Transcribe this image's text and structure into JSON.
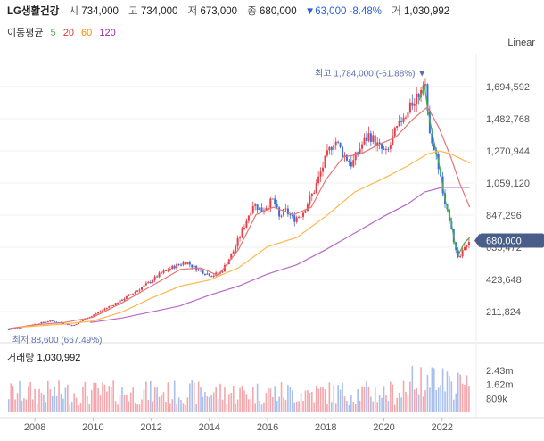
{
  "header": {
    "name": "LG생활건강",
    "open_label": "시",
    "open": "734,000",
    "high_label": "고",
    "high": "734,000",
    "low_label": "저",
    "low": "673,000",
    "close_label": "종",
    "close": "680,000",
    "change": "▼63,000",
    "change_pct": "-8.48%",
    "volume_label": "거",
    "volume": "1,030,992"
  },
  "ma_legend": {
    "title": "이동평균",
    "items": [
      {
        "label": "5",
        "color": "#4caf50"
      },
      {
        "label": "20",
        "color": "#e53935"
      },
      {
        "label": "60",
        "color": "#fb8c00"
      },
      {
        "label": "120",
        "color": "#9c27b0"
      }
    ]
  },
  "scale_button": "Linear",
  "volume_panel": {
    "label": "거래량",
    "value": "1,030,992"
  },
  "colors": {
    "up": "#e5404a",
    "down": "#3a6fd8",
    "last_price_bg": "#4a5e8a",
    "annotation": "#5b6fae"
  },
  "chart_data": {
    "type": "candlestick",
    "price_axis": {
      "ticks": [
        211824,
        423648,
        635472,
        847296,
        1059120,
        1270944,
        1482768,
        1694592
      ],
      "tick_labels": [
        "211,824",
        "423,648",
        "635,472",
        "847,296",
        "1,059,120",
        "1,270,944",
        "1,482,768",
        "1,694,592"
      ]
    },
    "time_axis": {
      "ticks": [
        2008,
        2010,
        2012,
        2014,
        2016,
        2018,
        2020,
        2022
      ],
      "range": [
        2007.1,
        2022.95
      ]
    },
    "last_price": {
      "value": 680000,
      "label": "680,000"
    },
    "annotations": {
      "high": {
        "label": "최고 1,784,000 (-61.88%)",
        "value": 1784000,
        "time": 2021.4
      },
      "low": {
        "label": "최저 88,600 (667.49%)",
        "value": 88600,
        "time": 2007.1
      }
    },
    "price_path": [
      [
        2007.1,
        95000
      ],
      [
        2007.6,
        115000
      ],
      [
        2008.0,
        130000
      ],
      [
        2008.5,
        150000
      ],
      [
        2009.0,
        135000
      ],
      [
        2009.3,
        120000
      ],
      [
        2009.6,
        150000
      ],
      [
        2010.0,
        190000
      ],
      [
        2010.5,
        240000
      ],
      [
        2011.0,
        290000
      ],
      [
        2011.5,
        350000
      ],
      [
        2011.9,
        400000
      ],
      [
        2012.3,
        460000
      ],
      [
        2012.8,
        510000
      ],
      [
        2013.2,
        540000
      ],
      [
        2013.5,
        500000
      ],
      [
        2013.8,
        470000
      ],
      [
        2014.1,
        450000
      ],
      [
        2014.4,
        470000
      ],
      [
        2014.8,
        600000
      ],
      [
        2015.2,
        780000
      ],
      [
        2015.5,
        920000
      ],
      [
        2015.8,
        880000
      ],
      [
        2016.2,
        950000
      ],
      [
        2016.4,
        830000
      ],
      [
        2016.6,
        880000
      ],
      [
        2016.9,
        820000
      ],
      [
        2017.2,
        860000
      ],
      [
        2017.6,
        1010000
      ],
      [
        2018.0,
        1220000
      ],
      [
        2018.3,
        1350000
      ],
      [
        2018.6,
        1250000
      ],
      [
        2018.9,
        1180000
      ],
      [
        2019.2,
        1300000
      ],
      [
        2019.5,
        1380000
      ],
      [
        2019.8,
        1300000
      ],
      [
        2020.1,
        1250000
      ],
      [
        2020.4,
        1400000
      ],
      [
        2020.8,
        1500000
      ],
      [
        2021.0,
        1600000
      ],
      [
        2021.2,
        1650000
      ],
      [
        2021.4,
        1784000
      ],
      [
        2021.5,
        1500000
      ],
      [
        2021.7,
        1300000
      ],
      [
        2021.9,
        1150000
      ],
      [
        2022.1,
        900000
      ],
      [
        2022.3,
        800000
      ],
      [
        2022.45,
        620000
      ],
      [
        2022.6,
        560000
      ],
      [
        2022.75,
        650000
      ],
      [
        2022.95,
        680000
      ]
    ],
    "moving_averages": [
      {
        "name": "5",
        "color": "#4caf50",
        "points": [
          [
            2021.2,
            1600000
          ],
          [
            2021.4,
            1700000
          ],
          [
            2021.5,
            1550000
          ],
          [
            2021.7,
            1350000
          ],
          [
            2021.9,
            1180000
          ],
          [
            2022.1,
            950000
          ],
          [
            2022.3,
            820000
          ],
          [
            2022.45,
            650000
          ],
          [
            2022.6,
            600000
          ],
          [
            2022.75,
            660000
          ],
          [
            2022.95,
            700000
          ]
        ]
      },
      {
        "name": "20",
        "color": "#e57373",
        "points": [
          [
            2007.1,
            100000
          ],
          [
            2008.0,
            125000
          ],
          [
            2009.0,
            140000
          ],
          [
            2010.0,
            175000
          ],
          [
            2011.0,
            270000
          ],
          [
            2012.0,
            380000
          ],
          [
            2013.0,
            490000
          ],
          [
            2013.7,
            500000
          ],
          [
            2014.3,
            450000
          ],
          [
            2015.0,
            620000
          ],
          [
            2015.6,
            850000
          ],
          [
            2016.2,
            900000
          ],
          [
            2016.9,
            850000
          ],
          [
            2017.5,
            900000
          ],
          [
            2018.0,
            1080000
          ],
          [
            2018.6,
            1230000
          ],
          [
            2019.2,
            1250000
          ],
          [
            2019.8,
            1310000
          ],
          [
            2020.4,
            1360000
          ],
          [
            2021.0,
            1480000
          ],
          [
            2021.5,
            1560000
          ],
          [
            2021.9,
            1420000
          ],
          [
            2022.3,
            1230000
          ],
          [
            2022.6,
            1060000
          ],
          [
            2022.95,
            900000
          ]
        ]
      },
      {
        "name": "60",
        "color": "#ffb74d",
        "points": [
          [
            2007.5,
            110000
          ],
          [
            2009.0,
            130000
          ],
          [
            2010.0,
            150000
          ],
          [
            2011.0,
            210000
          ],
          [
            2012.0,
            300000
          ],
          [
            2013.0,
            380000
          ],
          [
            2014.0,
            420000
          ],
          [
            2015.0,
            500000
          ],
          [
            2016.0,
            640000
          ],
          [
            2017.0,
            700000
          ],
          [
            2018.0,
            840000
          ],
          [
            2019.0,
            1000000
          ],
          [
            2020.0,
            1090000
          ],
          [
            2020.8,
            1170000
          ],
          [
            2021.5,
            1250000
          ],
          [
            2021.9,
            1270000
          ],
          [
            2022.3,
            1250000
          ],
          [
            2022.95,
            1190000
          ]
        ]
      },
      {
        "name": "120",
        "color": "#ba68c8",
        "points": [
          [
            2009.9,
            140000
          ],
          [
            2011.0,
            170000
          ],
          [
            2012.0,
            210000
          ],
          [
            2013.0,
            250000
          ],
          [
            2014.0,
            320000
          ],
          [
            2015.0,
            380000
          ],
          [
            2016.0,
            460000
          ],
          [
            2017.0,
            520000
          ],
          [
            2018.0,
            620000
          ],
          [
            2019.0,
            730000
          ],
          [
            2020.0,
            840000
          ],
          [
            2020.8,
            920000
          ],
          [
            2021.4,
            1000000
          ],
          [
            2022.0,
            1030000
          ],
          [
            2022.95,
            1030000
          ]
        ]
      }
    ],
    "volume_axis": {
      "ticks": [
        809000,
        1620000,
        2430000
      ],
      "tick_labels": [
        "809k",
        "1.62m",
        "2.43m"
      ]
    }
  }
}
